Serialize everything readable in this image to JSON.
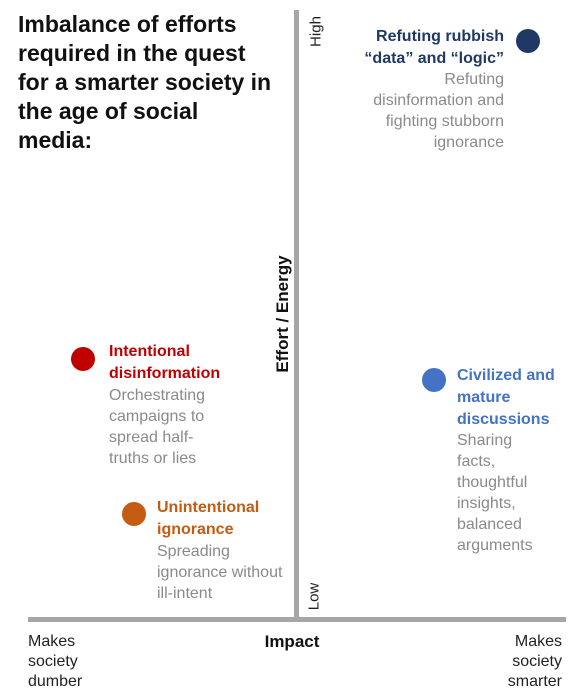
{
  "title": "Imbalance of efforts required in the quest for a smarter society in the age of social media:",
  "axes": {
    "y_label": "Effort / Energy",
    "y_high": "High",
    "y_low": "Low",
    "x_label": "Impact",
    "x_left": "Makes society dumber",
    "x_right": "Makes society smarter"
  },
  "colors": {
    "refuting": "#1f3864",
    "intentional": "#c00000",
    "unintentional": "#c55a11",
    "civilized": "#4472c4",
    "axis": "#a6a6a6",
    "description": "#8a8a8a"
  },
  "items": {
    "refuting": {
      "heading": "Refuting rubbish “data” and “logic”",
      "description": "Refuting disinformation and fighting stubborn ignorance"
    },
    "intentional": {
      "heading": "Intentional disinformation",
      "description": "Orchestrating campaigns to spread half-truths or lies"
    },
    "unintentional": {
      "heading": "Unintentional ignorance",
      "description": "Spreading ignorance without ill-intent"
    },
    "civilized": {
      "heading": "Civilized and mature discussions",
      "description": "Sharing facts, thoughtful insights, balanced arguments"
    }
  }
}
